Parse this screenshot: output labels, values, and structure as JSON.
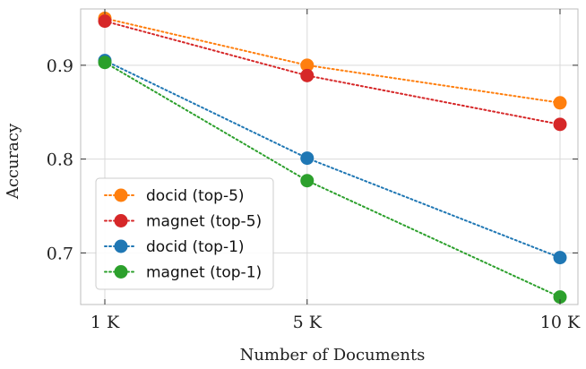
{
  "chart_data": {
    "type": "line",
    "xlabel": "Number of Documents",
    "ylabel": "Accuracy",
    "categories": [
      "1 K",
      "5 K",
      "10 K"
    ],
    "x": [
      1,
      5,
      10
    ],
    "ylim": [
      0.645,
      0.96
    ],
    "yticks": [
      0.7,
      0.8,
      0.9
    ],
    "ytick_labels": [
      "0.7",
      "0.8",
      "0.9"
    ],
    "grid": true,
    "legend_position": "lower-left",
    "series": [
      {
        "name": "docid (top-5)",
        "color": "#ff7f0e",
        "values": [
          0.95,
          0.9,
          0.86
        ]
      },
      {
        "name": "magnet (top-5)",
        "color": "#d62728",
        "values": [
          0.947,
          0.889,
          0.837
        ]
      },
      {
        "name": "docid (top-1)",
        "color": "#1f77b4",
        "values": [
          0.905,
          0.801,
          0.695
        ]
      },
      {
        "name": "magnet (top-1)",
        "color": "#2ca02c",
        "values": [
          0.903,
          0.777,
          0.653
        ]
      }
    ]
  }
}
